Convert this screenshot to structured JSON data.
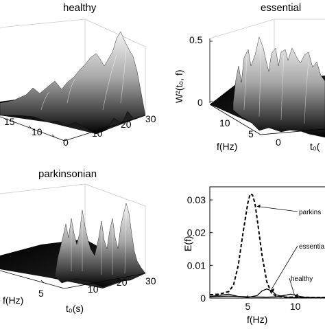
{
  "panels": {
    "healthy": {
      "title": "healthy",
      "f_ticks": [
        "15",
        "10"
      ],
      "t_ticks": [
        "0",
        "10",
        "20",
        "30"
      ]
    },
    "essential": {
      "title": "essential",
      "z_label": "W²(t₀, f)",
      "z_ticks": [
        "0.5",
        "0"
      ],
      "f_ticks": [
        "10",
        "5"
      ],
      "f_label": "f(Hz)",
      "t_ticks": [
        "0"
      ],
      "t_label_clip": "t₀("
    },
    "parkinsonian": {
      "title": "parkinsonian",
      "f_ticks": [
        "5"
      ],
      "f_label": "f(Hz)",
      "t_ticks": [
        "10",
        "20",
        "30"
      ],
      "t_label": "t₀(s)"
    }
  },
  "chart_data": {
    "type": "line",
    "xlabel": "f(Hz)",
    "ylabel": "E(f)",
    "x_ticks": [
      "5",
      "10"
    ],
    "y_ticks": [
      "0",
      "0.01",
      "0.02",
      "0.03"
    ],
    "xlim": [
      1,
      14
    ],
    "ylim": [
      0,
      0.034
    ],
    "series": [
      {
        "name": "parkinsonian",
        "label_visible": "parkins",
        "style": "dashed",
        "x": [
          1,
          2,
          3,
          3.5,
          4,
          4.5,
          5,
          5.25,
          5.5,
          5.75,
          6,
          6.5,
          7,
          7.5,
          8,
          9,
          10,
          12,
          14
        ],
        "y": [
          0.001,
          0.0012,
          0.002,
          0.004,
          0.01,
          0.02,
          0.029,
          0.0318,
          0.0315,
          0.029,
          0.024,
          0.013,
          0.005,
          0.0015,
          0.0006,
          0.0003,
          0.0003,
          0.0002,
          0.0002
        ]
      },
      {
        "name": "essential",
        "label_visible": "essentia",
        "style": "solid",
        "x": [
          1,
          3,
          4,
          5,
          6,
          6.5,
          7,
          7.5,
          8,
          9,
          10,
          12,
          14
        ],
        "y": [
          0.0005,
          0.0012,
          0.0005,
          0.0002,
          0.0008,
          0.0022,
          0.0028,
          0.0022,
          0.001,
          0.0003,
          0.0002,
          0.0001,
          0.0001
        ]
      },
      {
        "name": "healthy",
        "label_visible": "healthy",
        "style": "solid",
        "x": [
          1,
          3,
          5,
          7,
          8,
          9,
          9.5,
          10,
          10.5,
          11,
          12,
          14
        ],
        "y": [
          0.0004,
          0.0006,
          0.0004,
          0.0003,
          0.0004,
          0.0009,
          0.0012,
          0.0009,
          0.0005,
          0.0003,
          0.0002,
          0.0002
        ]
      }
    ]
  }
}
